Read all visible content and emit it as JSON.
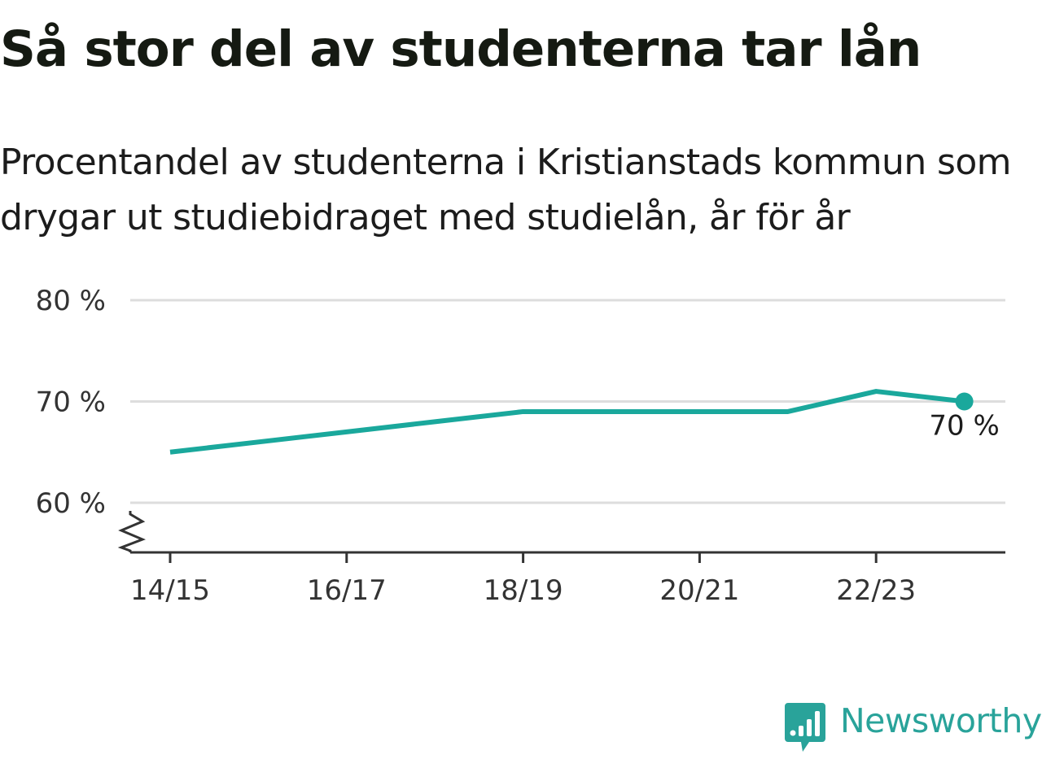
{
  "title": "Så stor del av studenterna tar lån",
  "subtitle": "Procentandel av studenterna i Kristianstads kommun som drygar ut studiebidraget med studielån, år för år",
  "brand": {
    "name": "Newsworthy",
    "color": "#29a39a",
    "icon": "newsworthy-logo-icon"
  },
  "colors": {
    "line": "#1aa89c",
    "grid": "#dddddd",
    "axis": "#333333",
    "text": "#151a12"
  },
  "chart_data": {
    "type": "line",
    "title": "Så stor del av studenterna tar lån",
    "subtitle": "Procentandel av studenterna i Kristianstads kommun som drygar ut studiebidraget med studielån, år för år",
    "x": [
      "14/15",
      "15/16",
      "16/17",
      "17/18",
      "18/19",
      "19/20",
      "20/21",
      "21/22",
      "22/23",
      "23/24"
    ],
    "x_tick_labels": [
      "14/15",
      "16/17",
      "18/19",
      "20/21",
      "22/23"
    ],
    "series": [
      {
        "values": [
          65,
          66,
          67,
          68,
          69,
          69,
          69,
          69,
          71,
          70
        ],
        "color": "#1aa89c"
      }
    ],
    "ylim": [
      55,
      80
    ],
    "yticks": [
      60,
      70,
      80
    ],
    "y_tick_labels": [
      "60 %",
      "70 %",
      "80 %"
    ],
    "y_axis_break": true,
    "grid": true,
    "last_point_label": "70 %",
    "xlabel": "",
    "ylabel": ""
  }
}
